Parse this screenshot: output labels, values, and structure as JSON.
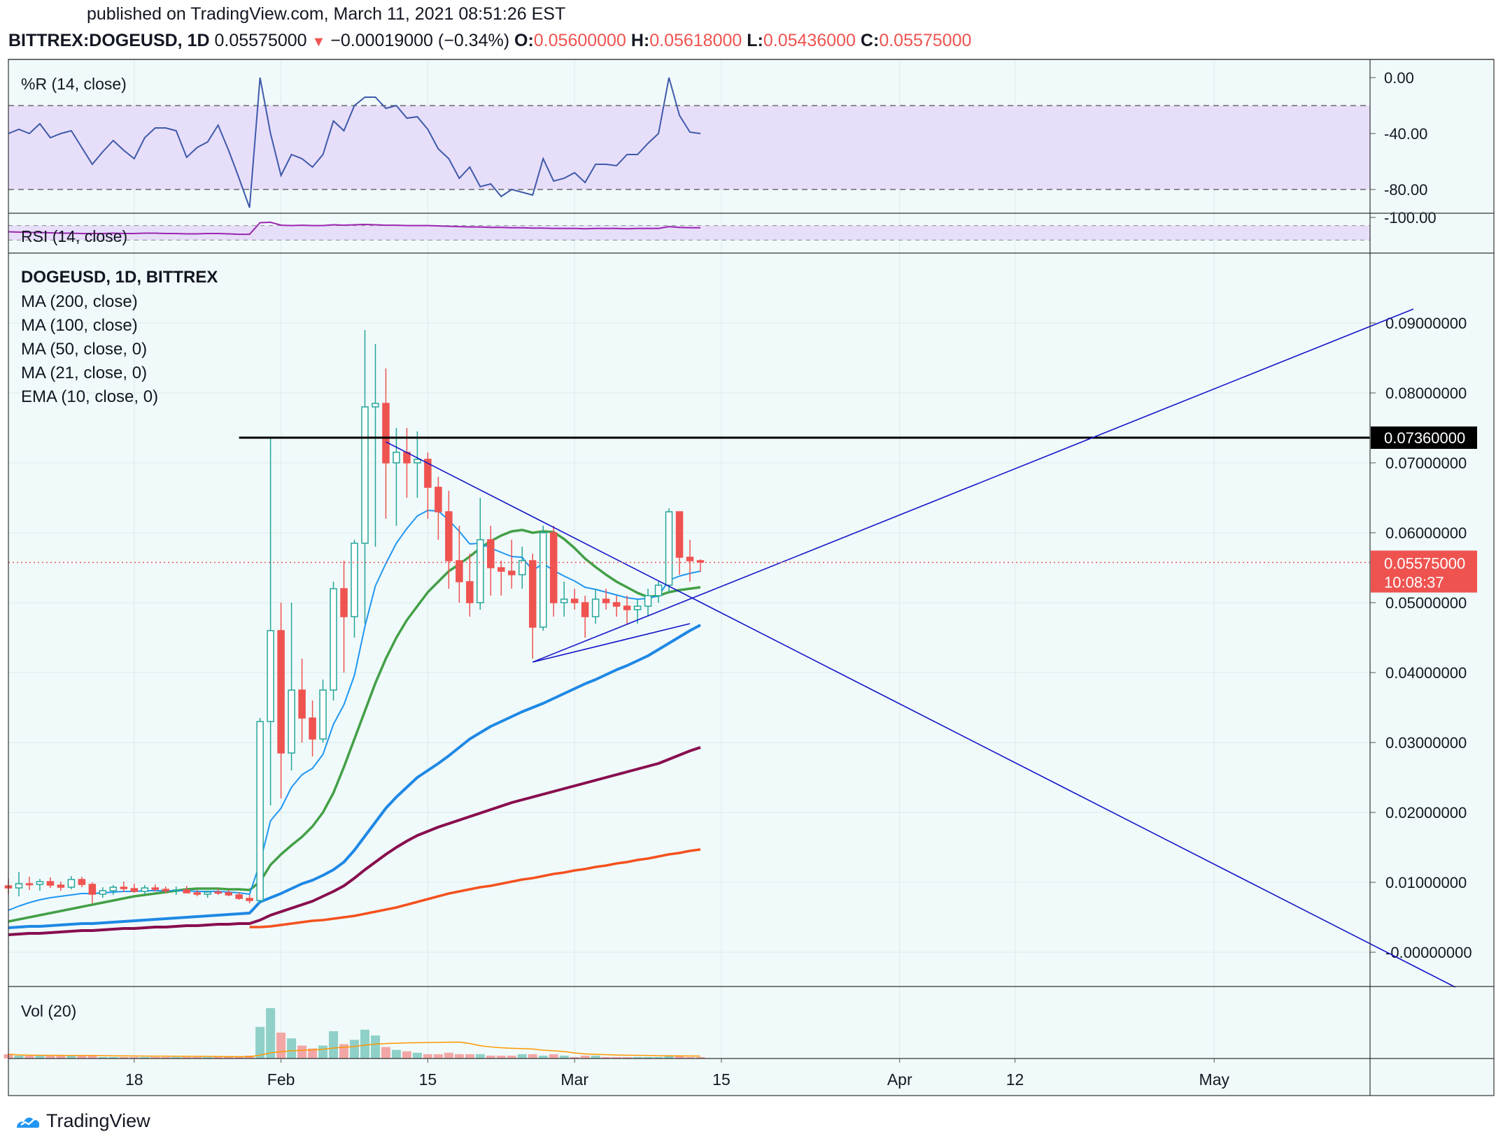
{
  "header": {
    "published": "published on TradingView.com, March 11, 2021 08:51:26 EST",
    "symbol": "BITTREX:DOGEUSD, 1D",
    "last": "0.05575000",
    "change": "−0.00019000 (−0.34%)",
    "o_label": "O:",
    "o": "0.05600000",
    "h_label": "H:",
    "h": "0.05618000",
    "l_label": "L:",
    "l": "0.05436000",
    "c_label": "C:",
    "c": "0.05575000"
  },
  "footer": {
    "brand": "TradingView"
  },
  "colors": {
    "bg": "#f0fafa",
    "up": "#26a69a",
    "down": "#ef5350",
    "grid": "#dde9ec",
    "ema10": "#2196f3",
    "ma21": "#43a047",
    "ma50": "#1e88e5",
    "ma100": "#880e4f",
    "ma200": "#f4511e",
    "rsi": "#9c27b0",
    "wpr": "#3f5aa9",
    "trend": "#1515c9",
    "band": "#e7defa"
  },
  "chart_data": [
    {
      "type": "line",
      "title": "%R (14, close)",
      "ylim": [
        -100,
        0
      ],
      "ticks": [
        "0.00",
        "-40.00",
        "-80.00",
        "-100.00"
      ],
      "tick_values": [
        0,
        -40,
        -80,
        -100
      ],
      "band": [
        -80,
        -20
      ],
      "x_start": "2021-01-06",
      "values": [
        -40,
        -37,
        -40,
        -33,
        -43,
        -40,
        -38,
        -50,
        -62,
        -53,
        -45,
        -52,
        -58,
        -43,
        -36,
        -36,
        -38,
        -57,
        -50,
        -46,
        -34,
        -52,
        -72,
        -93,
        0,
        -40,
        -70,
        -55,
        -58,
        -64,
        -55,
        -31,
        -38,
        -20,
        -14,
        -14,
        -22,
        -20,
        -29,
        -28,
        -37,
        -51,
        -58,
        -72,
        -64,
        -78,
        -76,
        -85,
        -80,
        -82,
        -84,
        -58,
        -74,
        -72,
        -68,
        -75,
        -62,
        -62,
        -63,
        -55,
        -55,
        -47,
        -40,
        0,
        -27,
        -39,
        -40
      ]
    },
    {
      "type": "line",
      "title": "RSI (14, close)",
      "band": [
        30,
        70
      ],
      "x_start": "2021-01-06",
      "values": [
        53,
        52,
        51,
        51,
        50,
        49,
        49,
        48,
        48,
        48,
        49,
        48,
        48,
        49,
        49,
        48,
        48,
        47,
        47,
        48,
        48,
        47,
        46,
        46,
        78,
        79,
        71,
        70,
        71,
        70,
        70,
        72,
        71,
        72,
        73,
        72,
        71,
        71,
        70,
        70,
        70,
        69,
        68,
        67,
        66,
        66,
        65,
        65,
        64,
        64,
        63,
        63,
        62,
        62,
        62,
        61,
        62,
        62,
        62,
        61,
        62,
        62,
        62,
        67,
        65,
        64,
        64
      ]
    },
    {
      "type": "candlestick",
      "title": "DOGEUSD, 1D, BITTREX",
      "legend": [
        "MA (200, close)",
        "MA (100, close)",
        "MA (50, close, 0)",
        "MA (21, close, 0)",
        "EMA (10, close, 0)"
      ],
      "ylim": [
        -0.005,
        0.097
      ],
      "ticks": [
        "0.09000000",
        "0.08000000",
        "0.07000000",
        "0.06000000",
        "0.05000000",
        "0.04000000",
        "0.03000000",
        "0.02000000",
        "0.01000000",
        "-0.00000000"
      ],
      "tick_values": [
        0.09,
        0.08,
        0.07,
        0.06,
        0.05,
        0.04,
        0.03,
        0.02,
        0.01,
        0.0
      ],
      "x_labels": [
        "18",
        "Feb",
        "15",
        "Mar",
        "15",
        "Apr",
        "12",
        "May"
      ],
      "x_label_dates": [
        "2021-01-18",
        "2021-02-01",
        "2021-02-15",
        "2021-03-01",
        "2021-03-15",
        "2021-04-01",
        "2021-04-12",
        "2021-05-01"
      ],
      "x_start": "2021-01-06",
      "price_marker": "0.05575000",
      "timer": "10:08:37",
      "last_value": 0.05575,
      "level_label": "0.07360000",
      "level_value": 0.0736,
      "level_start": "2021-01-28",
      "ohlc": [
        [
          0.0095,
          0.0105,
          0.0083,
          0.0092
        ],
        [
          0.0092,
          0.0115,
          0.008,
          0.0098
        ],
        [
          0.0098,
          0.0108,
          0.0089,
          0.0097
        ],
        [
          0.0097,
          0.0105,
          0.0088,
          0.0101
        ],
        [
          0.0101,
          0.0107,
          0.0092,
          0.0096
        ],
        [
          0.0096,
          0.0101,
          0.0088,
          0.0093
        ],
        [
          0.0093,
          0.0109,
          0.009,
          0.0104
        ],
        [
          0.0104,
          0.0108,
          0.0093,
          0.0097
        ],
        [
          0.0097,
          0.01,
          0.007,
          0.0083
        ],
        [
          0.0083,
          0.0093,
          0.0078,
          0.0088
        ],
        [
          0.0088,
          0.0096,
          0.0082,
          0.0093
        ],
        [
          0.0093,
          0.0101,
          0.0086,
          0.0091
        ],
        [
          0.0091,
          0.0098,
          0.0085,
          0.0087
        ],
        [
          0.0087,
          0.0096,
          0.0083,
          0.0092
        ],
        [
          0.0092,
          0.0097,
          0.0087,
          0.009
        ],
        [
          0.009,
          0.0094,
          0.0084,
          0.0088
        ],
        [
          0.0088,
          0.0094,
          0.0082,
          0.0089
        ],
        [
          0.0089,
          0.0095,
          0.0085,
          0.0085
        ],
        [
          0.0085,
          0.0089,
          0.008,
          0.0083
        ],
        [
          0.0083,
          0.0088,
          0.0078,
          0.0086
        ],
        [
          0.0086,
          0.0091,
          0.0082,
          0.0085
        ],
        [
          0.0085,
          0.0089,
          0.008,
          0.0082
        ],
        [
          0.0082,
          0.0086,
          0.0075,
          0.0077
        ],
        [
          0.0077,
          0.0082,
          0.007,
          0.0074
        ],
        [
          0.0074,
          0.0335,
          0.0072,
          0.033
        ],
        [
          0.033,
          0.0736,
          0.021,
          0.046
        ],
        [
          0.046,
          0.05,
          0.022,
          0.0285
        ],
        [
          0.0285,
          0.05,
          0.026,
          0.0375
        ],
        [
          0.0375,
          0.042,
          0.03,
          0.0335
        ],
        [
          0.0335,
          0.036,
          0.028,
          0.0305
        ],
        [
          0.0305,
          0.039,
          0.03,
          0.0375
        ],
        [
          0.0375,
          0.053,
          0.036,
          0.052
        ],
        [
          0.052,
          0.056,
          0.04,
          0.048
        ],
        [
          0.048,
          0.059,
          0.045,
          0.0585
        ],
        [
          0.0585,
          0.089,
          0.047,
          0.078
        ],
        [
          0.078,
          0.087,
          0.058,
          0.0785
        ],
        [
          0.0785,
          0.0835,
          0.062,
          0.07
        ],
        [
          0.07,
          0.075,
          0.061,
          0.0715
        ],
        [
          0.0715,
          0.075,
          0.065,
          0.07
        ],
        [
          0.07,
          0.0745,
          0.065,
          0.0705
        ],
        [
          0.0705,
          0.0715,
          0.062,
          0.0665
        ],
        [
          0.0665,
          0.068,
          0.059,
          0.063
        ],
        [
          0.063,
          0.066,
          0.052,
          0.056
        ],
        [
          0.056,
          0.061,
          0.05,
          0.053
        ],
        [
          0.053,
          0.057,
          0.048,
          0.05
        ],
        [
          0.05,
          0.065,
          0.049,
          0.059
        ],
        [
          0.059,
          0.061,
          0.051,
          0.055
        ],
        [
          0.055,
          0.056,
          0.051,
          0.0545
        ],
        [
          0.0545,
          0.059,
          0.052,
          0.054
        ],
        [
          0.054,
          0.058,
          0.052,
          0.056
        ],
        [
          0.056,
          0.057,
          0.042,
          0.0465
        ],
        [
          0.0465,
          0.061,
          0.046,
          0.06
        ],
        [
          0.06,
          0.061,
          0.048,
          0.05
        ],
        [
          0.05,
          0.053,
          0.048,
          0.0505
        ],
        [
          0.0505,
          0.052,
          0.049,
          0.05
        ],
        [
          0.05,
          0.051,
          0.045,
          0.048
        ],
        [
          0.048,
          0.052,
          0.047,
          0.0505
        ],
        [
          0.0505,
          0.052,
          0.049,
          0.05
        ],
        [
          0.05,
          0.051,
          0.048,
          0.0495
        ],
        [
          0.0495,
          0.051,
          0.047,
          0.049
        ],
        [
          0.049,
          0.0505,
          0.047,
          0.0495
        ],
        [
          0.0495,
          0.052,
          0.048,
          0.051
        ],
        [
          0.051,
          0.053,
          0.05,
          0.0525
        ],
        [
          0.0525,
          0.0635,
          0.0515,
          0.063
        ],
        [
          0.063,
          0.063,
          0.054,
          0.0565
        ],
        [
          0.0565,
          0.059,
          0.053,
          0.056
        ],
        [
          0.056,
          0.0562,
          0.0544,
          0.0558
        ]
      ],
      "ema10": [
        0.006,
        0.0066,
        0.0071,
        0.0075,
        0.0078,
        0.008,
        0.0082,
        0.0084,
        0.0084,
        0.0085,
        0.0086,
        0.0087,
        0.0087,
        0.0088,
        0.0088,
        0.0088,
        0.0088,
        0.0088,
        0.0087,
        0.0087,
        0.0087,
        0.0086,
        0.0085,
        0.0083,
        0.0128,
        0.0188,
        0.0206,
        0.0236,
        0.0254,
        0.0263,
        0.0283,
        0.0326,
        0.0354,
        0.0396,
        0.0466,
        0.0524,
        0.0556,
        0.0585,
        0.0606,
        0.0624,
        0.0632,
        0.0631,
        0.0618,
        0.0602,
        0.0584,
        0.0585,
        0.0578,
        0.0572,
        0.0566,
        0.0565,
        0.0546,
        0.0556,
        0.0546,
        0.0538,
        0.0531,
        0.0522,
        0.0519,
        0.0515,
        0.0511,
        0.0507,
        0.0505,
        0.0506,
        0.051,
        0.0532,
        0.0538,
        0.0542,
        0.0545
      ],
      "ma21": [
        0.0044,
        0.0047,
        0.005,
        0.0053,
        0.0056,
        0.0059,
        0.0062,
        0.0065,
        0.0068,
        0.0071,
        0.0074,
        0.0077,
        0.008,
        0.0082,
        0.0084,
        0.0086,
        0.0088,
        0.009,
        0.0091,
        0.0091,
        0.0091,
        0.009,
        0.009,
        0.0089,
        0.0101,
        0.0125,
        0.014,
        0.0153,
        0.0165,
        0.018,
        0.02,
        0.0228,
        0.0265,
        0.0305,
        0.0345,
        0.0385,
        0.042,
        0.045,
        0.0475,
        0.0495,
        0.0515,
        0.053,
        0.0545,
        0.0555,
        0.0566,
        0.0578,
        0.0588,
        0.0596,
        0.0602,
        0.0604,
        0.06,
        0.0602,
        0.0601,
        0.0591,
        0.0578,
        0.0563,
        0.0551,
        0.054,
        0.053,
        0.0522,
        0.0514,
        0.0508,
        0.051,
        0.0515,
        0.0518,
        0.052,
        0.0522
      ],
      "ma50": [
        0.0035,
        0.0036,
        0.0037,
        0.0037,
        0.0038,
        0.0039,
        0.004,
        0.0041,
        0.0041,
        0.0042,
        0.0043,
        0.0044,
        0.0045,
        0.0046,
        0.0047,
        0.0048,
        0.0049,
        0.005,
        0.0051,
        0.0052,
        0.0053,
        0.0054,
        0.0055,
        0.0056,
        0.0072,
        0.0078,
        0.0084,
        0.0091,
        0.0098,
        0.0103,
        0.011,
        0.0118,
        0.0129,
        0.0146,
        0.0166,
        0.0186,
        0.0206,
        0.0222,
        0.0236,
        0.025,
        0.026,
        0.027,
        0.0281,
        0.0293,
        0.0305,
        0.0314,
        0.0323,
        0.033,
        0.0337,
        0.0344,
        0.035,
        0.0356,
        0.0363,
        0.037,
        0.0377,
        0.0384,
        0.039,
        0.0397,
        0.0404,
        0.041,
        0.0417,
        0.0424,
        0.0433,
        0.0442,
        0.0451,
        0.046,
        0.0468
      ],
      "ma100": [
        0.0025,
        0.0026,
        0.0027,
        0.0027,
        0.0028,
        0.0029,
        0.003,
        0.0031,
        0.0031,
        0.0032,
        0.0033,
        0.0034,
        0.0034,
        0.0035,
        0.0036,
        0.0036,
        0.0037,
        0.0038,
        0.0038,
        0.0039,
        0.004,
        0.004,
        0.0041,
        0.0041,
        0.0046,
        0.0053,
        0.0058,
        0.0063,
        0.0068,
        0.0073,
        0.008,
        0.0087,
        0.0095,
        0.0106,
        0.0118,
        0.0129,
        0.014,
        0.015,
        0.0159,
        0.0167,
        0.0173,
        0.0179,
        0.0184,
        0.0189,
        0.0194,
        0.0199,
        0.0204,
        0.0209,
        0.0214,
        0.0218,
        0.0222,
        0.0226,
        0.023,
        0.0234,
        0.0238,
        0.0242,
        0.0246,
        0.025,
        0.0254,
        0.0258,
        0.0262,
        0.0266,
        0.027,
        0.0276,
        0.0282,
        0.0288,
        0.0293
      ],
      "ma200_start": 23,
      "ma200": [
        0.0036,
        0.0036,
        0.0037,
        0.0039,
        0.0041,
        0.0043,
        0.0045,
        0.0046,
        0.0048,
        0.005,
        0.0052,
        0.0055,
        0.0058,
        0.0061,
        0.0064,
        0.0068,
        0.0072,
        0.0076,
        0.008,
        0.0084,
        0.0087,
        0.009,
        0.0093,
        0.0095,
        0.0098,
        0.0101,
        0.0104,
        0.0106,
        0.0109,
        0.0112,
        0.0114,
        0.0117,
        0.0119,
        0.0122,
        0.0124,
        0.0127,
        0.0129,
        0.0132,
        0.0134,
        0.0137,
        0.014,
        0.0142,
        0.0145,
        0.0147
      ]
    },
    {
      "type": "bar",
      "title": "Vol (20)",
      "x_start": "2021-01-06",
      "values": [
        3,
        2,
        2,
        2,
        2,
        2,
        2,
        2,
        2,
        1,
        1,
        1,
        1,
        1,
        1,
        1,
        1,
        1,
        1,
        1,
        1,
        1,
        1,
        2,
        22,
        35,
        18,
        14,
        9,
        7,
        9,
        19,
        10,
        13,
        20,
        16,
        8,
        6,
        5,
        4,
        3,
        3,
        4,
        3,
        3,
        3,
        2,
        2,
        2,
        3,
        3,
        2,
        3,
        2,
        1,
        2,
        2,
        1,
        1,
        1,
        1,
        1,
        1,
        2,
        2,
        1,
        1
      ]
    }
  ]
}
